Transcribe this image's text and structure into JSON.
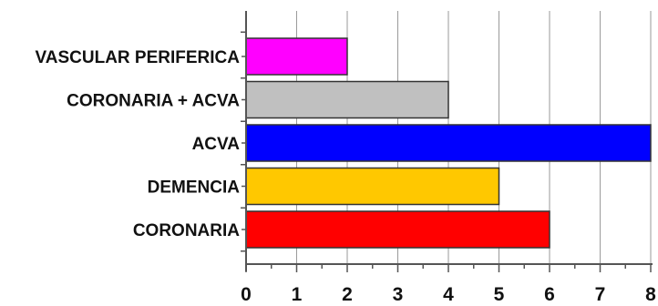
{
  "chart_data": {
    "type": "bar",
    "orientation": "horizontal",
    "categories": [
      "VASCULAR PERIFERICA",
      "CORONARIA + ACVA",
      "ACVA",
      "DEMENCIA",
      "CORONARIA"
    ],
    "values": [
      2,
      4,
      8,
      5,
      6
    ],
    "colors": [
      "#ff00ff",
      "#c0c0c0",
      "#0000ff",
      "#ffc800",
      "#ff0000"
    ],
    "xlim": [
      0,
      8
    ],
    "xticks": [
      "0",
      "1",
      "2",
      "3",
      "4",
      "5",
      "6",
      "7",
      "8"
    ],
    "grid": "vertical",
    "legend": "none"
  }
}
